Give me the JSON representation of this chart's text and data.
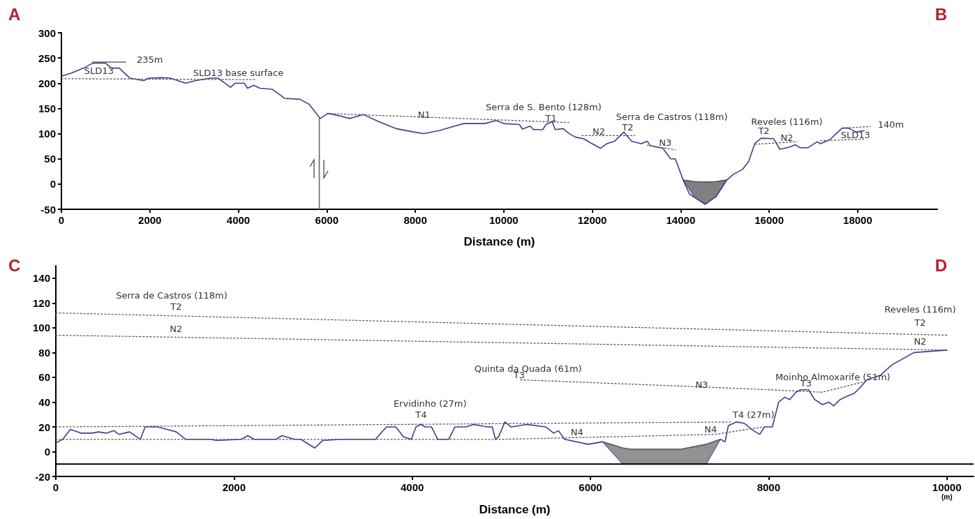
{
  "chart_data": [
    {
      "type": "line",
      "xlabel": "Distance (m)",
      "xlim": [
        0,
        19800
      ],
      "ylim": [
        -50,
        300
      ],
      "xticks": [
        0,
        2000,
        4000,
        6000,
        8000,
        10000,
        12000,
        14000,
        16000,
        18000
      ],
      "yticks": [
        -50,
        0,
        50,
        100,
        150,
        200,
        250,
        300
      ],
      "marker": "none",
      "line_style": "solid",
      "series": [
        {
          "color": "#3f3d8f",
          "x": [
            0,
            224,
            503,
            713,
            993,
            1132,
            1307,
            1551,
            1866,
            1971,
            2250,
            2460,
            2810,
            3020,
            3369,
            3544,
            3823,
            3928,
            4137,
            4207,
            4347,
            4487,
            4766,
            5046,
            5395,
            5604,
            5849,
            6024,
            6303,
            6513,
            6827,
            7142,
            7561,
            7980,
            8190,
            8540,
            8889,
            9099,
            9574,
            9824,
            10000,
            10353,
            10423,
            10600,
            10670,
            10882,
            10952,
            11093,
            11164,
            11340,
            11481,
            11622,
            11798,
            11974,
            12186,
            12327,
            12504,
            12715,
            12891,
            13103,
            13244,
            13314,
            13596,
            13772,
            13878,
            14055,
            14200,
            14550,
            14800,
            15043,
            15184,
            15395,
            15536,
            15677,
            15818,
            16100,
            16240,
            16452,
            16593,
            16699,
            16875,
            17086,
            17157,
            17369,
            17651,
            17792,
            17968,
            18145
          ],
          "values": [
            214,
            220,
            230,
            240,
            240,
            230,
            230,
            210,
            205,
            210,
            211,
            210,
            200,
            205,
            210,
            210,
            192,
            200,
            200,
            190,
            196,
            190,
            188,
            170,
            168,
            158,
            130,
            140,
            135,
            130,
            138,
            125,
            110,
            103,
            100,
            106,
            115,
            120,
            120,
            126,
            120,
            118,
            109,
            115,
            108,
            108,
            118,
            124,
            108,
            110,
            100,
            93,
            90,
            81,
            71,
            80,
            85,
            103,
            85,
            80,
            85,
            76,
            71,
            50,
            50,
            8,
            -20,
            -40,
            -25,
            8,
            19,
            29,
            45,
            81,
            91,
            90,
            69,
            73,
            78,
            72,
            72,
            84,
            80,
            88,
            111,
            111,
            103,
            106
          ]
        },
        {
          "type": "line",
          "color": "#555555",
          "x": [
            14055,
            14300,
            14550,
            14800,
            15043
          ],
          "values": [
            8,
            5,
            4,
            5,
            8
          ],
          "lower": [
            8,
            -25,
            -40,
            -25,
            8
          ],
          "upper": [
            8,
            5,
            4,
            5,
            8
          ]
        },
        {
          "color": "#666666",
          "x": [
            700,
            1450
          ],
          "values": [
            242,
            242
          ]
        },
        {
          "color": "#666666",
          "x": [
            5830,
            5830
          ],
          "values": [
            -50,
            130
          ]
        },
        {
          "color": "#555555",
          "line_style": "dotted",
          "x": [
            0,
            4400
          ],
          "values": [
            209,
            207
          ]
        },
        {
          "color": "#555555",
          "line_style": "dotted",
          "x": [
            6000,
            11481
          ],
          "values": [
            140,
            122
          ]
        },
        {
          "color": "#555555",
          "line_style": "dotted",
          "x": [
            11763,
            12962
          ],
          "values": [
            96,
            96
          ]
        },
        {
          "color": "#555555",
          "line_style": "dotted",
          "x": [
            13244,
            13878
          ],
          "values": [
            77,
            68
          ]
        },
        {
          "color": "#555555",
          "line_style": "dotted",
          "x": [
            15677,
            16629
          ],
          "values": [
            79,
            84
          ]
        },
        {
          "color": "#555555",
          "line_style": "dotted",
          "x": [
            17157,
            18180
          ],
          "values": [
            86,
            89
          ]
        },
        {
          "color": "#555555",
          "line_style": "dotted",
          "x": [
            17651,
            18286
          ],
          "values": [
            111,
            114
          ]
        }
      ],
      "annotations": [
        "A",
        "B",
        "235m",
        "SLD13",
        "SLD13 base surface",
        "N1",
        "Serra de S. Bento (128m)",
        "T1",
        "N2",
        "T2",
        "Serra de Castros (118m)",
        "N3",
        "Reveles (116m)",
        "T2",
        "N2",
        "SLD13",
        "140m"
      ]
    },
    {
      "type": "line",
      "xlabel": "Distance (m)",
      "xlim": [
        0,
        10300
      ],
      "ylim": [
        -20,
        150
      ],
      "xticks": [
        0,
        2000,
        4000,
        6000,
        8000,
        {
          "value": 10000,
          "label": "10000\n(m)"
        }
      ],
      "yticks": [
        -20,
        0,
        20,
        40,
        60,
        80,
        100,
        120,
        140
      ],
      "marker": "none",
      "line_style": "solid",
      "ref_lines": [
        {
          "axis": "y",
          "value": -10,
          "color": "#000000"
        }
      ],
      "series": [
        {
          "color": "#3f3d8f",
          "x": [
            0,
            77,
            164,
            286,
            409,
            478,
            566,
            653,
            706,
            828,
            950,
            1002,
            1142,
            1247,
            1352,
            1457,
            1736,
            1806,
            2079,
            2155,
            2225,
            2469,
            2539,
            2679,
            2749,
            2906,
            2993,
            3203,
            3587,
            3710,
            3815,
            3902,
            3989,
            4042,
            4094,
            4147,
            4217,
            4287,
            4409,
            4479,
            4602,
            4689,
            4839,
            4898,
            4934,
            4969,
            5040,
            5110,
            5286,
            5499,
            5587,
            5640,
            5710,
            5975,
            6134,
            6364,
            6452,
            7017,
            7300,
            7459,
            7511,
            7547,
            7635,
            7723,
            7829,
            7900,
            7953,
            8041,
            8112,
            8182,
            8235,
            8306,
            8359,
            8447,
            8517,
            8606,
            8676,
            8729,
            8800,
            8888,
            8959,
            9030,
            9100,
            9189,
            9259,
            9383,
            9630,
            10000
          ],
          "values": [
            7,
            10,
            18,
            15,
            15,
            16,
            15,
            17,
            14,
            16,
            10,
            20,
            20,
            18,
            16,
            10,
            10,
            9,
            10,
            13,
            10,
            10,
            13,
            10,
            10,
            3,
            9,
            10,
            10,
            20,
            20,
            12,
            10,
            20,
            22,
            20,
            20,
            10,
            10,
            20,
            20,
            22,
            20,
            20,
            10,
            12,
            24,
            20,
            22,
            20,
            15,
            17,
            10,
            6,
            8,
            3,
            2,
            2,
            6,
            10,
            8,
            21,
            24,
            23,
            17,
            14,
            20,
            20,
            40,
            44,
            42,
            48,
            50,
            50,
            42,
            38,
            40,
            37,
            42,
            45,
            47,
            52,
            58,
            60,
            62,
            70,
            80,
            82
          ]
        },
        {
          "type": "line",
          "color": "#6e6e6e",
          "x": [
            6134,
            6364,
            6452,
            7017,
            7300,
            7459
          ],
          "values": [
            8,
            3,
            2,
            2,
            6,
            10
          ],
          "lower": [
            8,
            -10,
            -10,
            -10,
            -10,
            10
          ],
          "upper": [
            8,
            3,
            2,
            2,
            6,
            10
          ]
        },
        {
          "color": "#555555",
          "line_style": "dotted",
          "x": [
            0,
            10000
          ],
          "values": [
            112,
            94
          ]
        },
        {
          "color": "#555555",
          "line_style": "dotted",
          "x": [
            0,
            10000
          ],
          "values": [
            94,
            82
          ]
        },
        {
          "color": "#555555",
          "line_style": "dotted",
          "x": [
            5216,
            7000,
            8000,
            8600,
            9100
          ],
          "values": [
            58,
            53,
            50,
            48,
            57
          ]
        },
        {
          "color": "#555555",
          "line_style": "dotted",
          "x": [
            0,
            7582
          ],
          "values": [
            20,
            24
          ]
        },
        {
          "color": "#555555",
          "line_style": "dotted",
          "x": [
            0,
            5000,
            7400,
            7935
          ],
          "values": [
            10,
            10,
            14,
            20
          ]
        }
      ],
      "annotations": [
        "C",
        "D",
        "Serra de Castros (118m)",
        "T2",
        "N2",
        "Quinta da Quada (61m)",
        "T3",
        "Ervidinho (27m)",
        "T4",
        "N4",
        "N4",
        "N3",
        "T4 (27m)",
        "Moinho Almoxarife (51m)",
        "T3",
        "Reveles (116m)",
        "T2",
        "N2"
      ]
    }
  ]
}
